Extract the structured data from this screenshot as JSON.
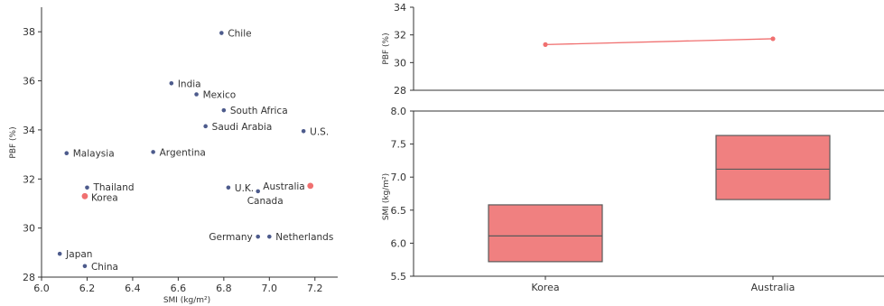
{
  "chart_data": [
    {
      "type": "scatter",
      "xlabel": "SMI (kg/m²)",
      "ylabel": "PBF (%)",
      "xlim": [
        6.0,
        7.3
      ],
      "ylim": [
        28,
        39
      ],
      "xticks": [
        "6.0",
        "6.2",
        "6.4",
        "6.6",
        "6.8",
        "7.0",
        "7.2"
      ],
      "yticks": [
        "28",
        "30",
        "32",
        "34",
        "36",
        "38"
      ],
      "points": [
        {
          "label": "Chile",
          "x": 6.79,
          "y": 37.95,
          "color": "#4d5b8c"
        },
        {
          "label": "India",
          "x": 6.57,
          "y": 35.9,
          "color": "#4d5b8c"
        },
        {
          "label": "Mexico",
          "x": 6.68,
          "y": 35.45,
          "color": "#4d5b8c"
        },
        {
          "label": "South Africa",
          "x": 6.8,
          "y": 34.8,
          "color": "#4d5b8c"
        },
        {
          "label": "Saudi Arabia",
          "x": 6.72,
          "y": 34.15,
          "color": "#4d5b8c"
        },
        {
          "label": "U.S.",
          "x": 7.15,
          "y": 33.95,
          "color": "#4d5b8c"
        },
        {
          "label": "Malaysia",
          "x": 6.11,
          "y": 33.05,
          "color": "#4d5b8c"
        },
        {
          "label": "Argentina",
          "x": 6.49,
          "y": 33.1,
          "color": "#4d5b8c"
        },
        {
          "label": "Thailand",
          "x": 6.2,
          "y": 31.65,
          "color": "#4d5b8c"
        },
        {
          "label": "Korea",
          "x": 6.19,
          "y": 31.3,
          "color": "#f07070"
        },
        {
          "label": "U.K.",
          "x": 6.82,
          "y": 31.65,
          "color": "#4d5b8c"
        },
        {
          "label": "Australia",
          "x": 7.18,
          "y": 31.72,
          "color": "#f07070"
        },
        {
          "label": "Canada",
          "x": 6.95,
          "y": 31.5,
          "color": "#4d5b8c"
        },
        {
          "label": "Germany",
          "x": 6.95,
          "y": 29.65,
          "color": "#4d5b8c"
        },
        {
          "label": "Netherlands",
          "x": 7.0,
          "y": 29.65,
          "color": "#4d5b8c"
        },
        {
          "label": "Japan",
          "x": 6.08,
          "y": 28.95,
          "color": "#4d5b8c"
        },
        {
          "label": "China",
          "x": 6.19,
          "y": 28.45,
          "color": "#4d5b8c"
        }
      ]
    },
    {
      "type": "line",
      "ylabel": "PBF (%)",
      "categories": [
        "Korea",
        "Australia"
      ],
      "values": [
        31.3,
        31.72
      ],
      "ylim": [
        28,
        34
      ],
      "yticks": [
        "28",
        "30",
        "32",
        "34"
      ],
      "color": "#f07070"
    },
    {
      "type": "box",
      "ylabel": "SMI (kg/m²)",
      "categories": [
        "Korea",
        "Australia"
      ],
      "boxes": [
        {
          "category": "Korea",
          "whisker_low": 5.72,
          "q1": 5.72,
          "median": 6.11,
          "q3": 6.58,
          "whisker_high": 6.58
        },
        {
          "category": "Australia",
          "whisker_low": 6.66,
          "q1": 6.66,
          "median": 7.12,
          "q3": 7.63,
          "whisker_high": 7.63
        }
      ],
      "ylim": [
        5.5,
        8.0
      ],
      "yticks": [
        "5.5",
        "6.0",
        "6.5",
        "7.0",
        "7.5",
        "8.0"
      ],
      "color": "#f08080"
    }
  ]
}
